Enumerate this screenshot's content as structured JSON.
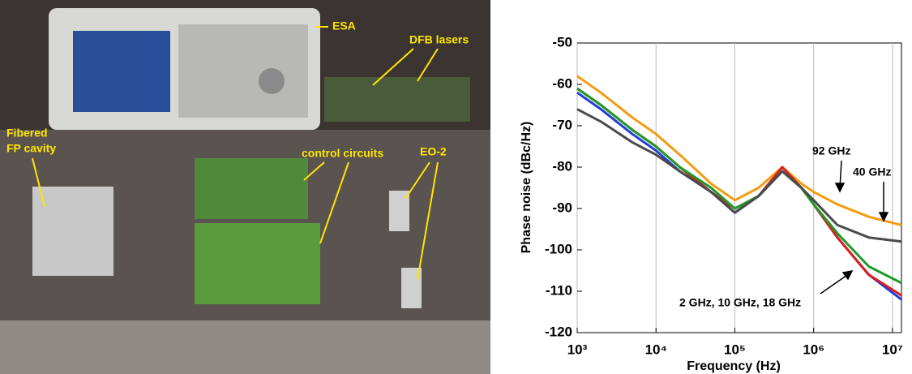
{
  "photo_labels": [
    "ESA",
    "DFB lasers",
    "Fibered",
    "FP cavity",
    "control circuits",
    "EO-2"
  ],
  "chart_data": {
    "type": "line",
    "x_label": "Frequency (Hz)",
    "y_label": "Phase noise (dBc/Hz)",
    "xscale": "log",
    "xlim": [
      1000,
      13000000
    ],
    "ylim": [
      -120,
      -50
    ],
    "xticks": [
      {
        "value": 1000,
        "label": "10³"
      },
      {
        "value": 10000,
        "label": "10⁴"
      },
      {
        "value": 100000,
        "label": "10⁵"
      },
      {
        "value": 1000000,
        "label": "10⁶"
      },
      {
        "value": 10000000,
        "label": "10⁷"
      }
    ],
    "yticks": [
      -120,
      -110,
      -100,
      -90,
      -80,
      -70,
      -60,
      -50
    ],
    "grid": true,
    "x": [
      1000,
      2000,
      5000,
      10000,
      20000,
      50000,
      100000,
      200000,
      400000,
      700000,
      1000000,
      2000000,
      5000000,
      13000000
    ],
    "series": [
      {
        "color": "#f39c12",
        "values": [
          -58,
          -62,
          -68,
          -72,
          -77,
          -84,
          -88,
          -85,
          -80,
          -84,
          -86,
          -89,
          -92,
          -94
        ]
      },
      {
        "color": "#1f3fd6",
        "values": [
          -62,
          -66,
          -72,
          -76,
          -81,
          -86,
          -91,
          -87,
          -81,
          -85,
          -89,
          -97,
          -106,
          -112
        ]
      },
      {
        "color": "#d62020",
        "values": [
          -61,
          -65,
          -71,
          -75,
          -80,
          -86,
          -90,
          -87,
          -80,
          -85,
          -89,
          -97,
          -106,
          -111
        ]
      },
      {
        "color": "#1e9a2a",
        "values": [
          -61,
          -65,
          -71,
          -75,
          -80,
          -85,
          -90,
          -87,
          -81,
          -85,
          -89,
          -96,
          -104,
          -108
        ]
      },
      {
        "color": "#4a4a4a",
        "values": [
          -66,
          -69,
          -74,
          -77,
          -81,
          -86,
          -91,
          -87,
          -81,
          -85,
          -88,
          -94,
          -97,
          -98
        ]
      }
    ],
    "annotations": [
      "92 GHz",
      "40 GHz",
      "2 GHz, 10 GHz, 18 GHz"
    ]
  }
}
